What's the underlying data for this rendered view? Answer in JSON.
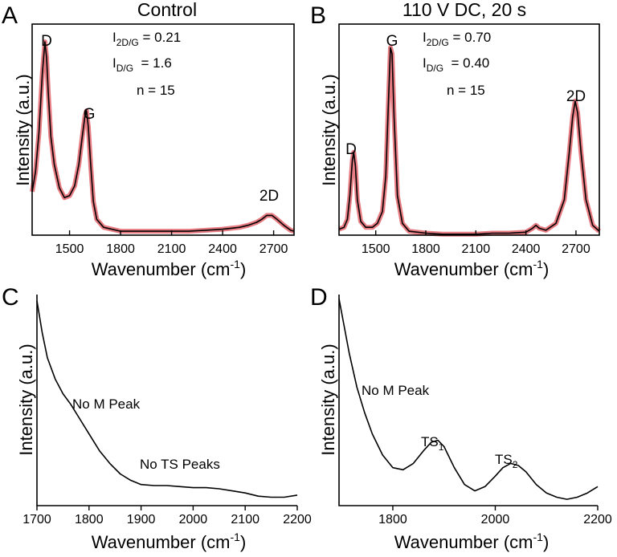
{
  "chart_data": [
    {
      "panel": "A",
      "title": "Control",
      "type": "line",
      "xlabel": "Wavenumber (cm",
      "xlabel_sup": "-1",
      "xlabel_end": ")",
      "ylabel": "Intensity (a.u.)",
      "xlim": [
        1280,
        2820
      ],
      "ylim": [
        0,
        1.07
      ],
      "x_ticks": [
        "1500",
        "1800",
        "2100",
        "2400",
        "2700"
      ],
      "curve_color": "#000000",
      "band_color": "#e0505a",
      "series": [
        {
          "x": [
            1280,
            1300,
            1320,
            1340,
            1355,
            1365,
            1375,
            1390,
            1410,
            1440,
            1470,
            1500,
            1530,
            1555,
            1575,
            1590,
            1600,
            1610,
            1625,
            1640,
            1660,
            1700,
            1800,
            1900,
            2000,
            2100,
            2200,
            2300,
            2400,
            2450,
            2500,
            2550,
            2600,
            2630,
            2660,
            2690,
            2720,
            2760,
            2800,
            2820
          ],
          "y": [
            0.22,
            0.32,
            0.52,
            0.82,
            0.98,
            0.9,
            0.72,
            0.5,
            0.36,
            0.24,
            0.19,
            0.2,
            0.25,
            0.36,
            0.5,
            0.6,
            0.63,
            0.55,
            0.35,
            0.17,
            0.08,
            0.04,
            0.02,
            0.02,
            0.02,
            0.02,
            0.02,
            0.025,
            0.03,
            0.035,
            0.04,
            0.05,
            0.065,
            0.08,
            0.1,
            0.1,
            0.08,
            0.05,
            0.025,
            0.02
          ]
        }
      ],
      "annotations": [
        {
          "label": "I",
          "sub": "2D/G",
          "text": " = 0.21"
        },
        {
          "label": "I",
          "sub": "D/G",
          "text": "  = 1.6"
        },
        {
          "label": "",
          "sub": "",
          "text": "n = 15"
        }
      ],
      "peak_labels": [
        "D",
        "G",
        "2D"
      ]
    },
    {
      "panel": "B",
      "title": "110 V DC, 20 s",
      "type": "line",
      "xlabel": "Wavenumber (cm",
      "xlabel_sup": "-1",
      "xlabel_end": ")",
      "ylabel": "Intensity (a.u.)",
      "xlim": [
        1280,
        2840
      ],
      "ylim": [
        0,
        1.07
      ],
      "x_ticks": [
        "1500",
        "1800",
        "2100",
        "2400",
        "2700"
      ],
      "curve_color": "#000000",
      "band_color": "#e0505a",
      "series": [
        {
          "x": [
            1280,
            1310,
            1330,
            1345,
            1360,
            1368,
            1378,
            1390,
            1410,
            1440,
            1480,
            1510,
            1540,
            1560,
            1575,
            1588,
            1598,
            1610,
            1630,
            1660,
            1700,
            1800,
            1900,
            2000,
            2100,
            2200,
            2300,
            2400,
            2440,
            2460,
            2480,
            2520,
            2580,
            2630,
            2660,
            2680,
            2695,
            2710,
            2730,
            2760,
            2800,
            2840
          ],
          "y": [
            0.03,
            0.04,
            0.08,
            0.2,
            0.38,
            0.42,
            0.35,
            0.18,
            0.07,
            0.04,
            0.04,
            0.06,
            0.12,
            0.3,
            0.65,
            0.95,
            0.92,
            0.6,
            0.2,
            0.06,
            0.02,
            0.01,
            0.005,
            0.005,
            0.005,
            0.01,
            0.01,
            0.015,
            0.035,
            0.05,
            0.035,
            0.025,
            0.06,
            0.18,
            0.42,
            0.6,
            0.68,
            0.62,
            0.42,
            0.18,
            0.05,
            0.02
          ]
        }
      ],
      "annotations": [
        {
          "label": "I",
          "sub": "2D/G",
          "text": " = 0.70"
        },
        {
          "label": "I",
          "sub": "D/G",
          "text": "  = 0.40"
        },
        {
          "label": "",
          "sub": "",
          "text": "n = 15"
        }
      ],
      "peak_labels": [
        "D",
        "G",
        "2D"
      ]
    },
    {
      "panel": "C",
      "type": "line",
      "xlabel": "Wavenumber (cm",
      "xlabel_sup": "-1",
      "xlabel_end": ")",
      "ylabel": "Intensity (a.u.)",
      "xlim": [
        1700,
        2200
      ],
      "ylim": [
        0,
        1.0
      ],
      "x_ticks": [
        "1700",
        "1800",
        "1900",
        "2000",
        "2100",
        "2200"
      ],
      "curve_color": "#000000",
      "series": [
        {
          "x": [
            1700,
            1710,
            1720,
            1735,
            1750,
            1765,
            1780,
            1800,
            1820,
            1840,
            1860,
            1880,
            1900,
            1925,
            1950,
            1975,
            2000,
            2025,
            2050,
            2075,
            2100,
            2125,
            2150,
            2175,
            2200
          ],
          "y": [
            0.97,
            0.82,
            0.7,
            0.6,
            0.53,
            0.48,
            0.42,
            0.34,
            0.26,
            0.2,
            0.15,
            0.12,
            0.1,
            0.095,
            0.095,
            0.09,
            0.085,
            0.085,
            0.08,
            0.07,
            0.06,
            0.045,
            0.04,
            0.04,
            0.05
          ]
        }
      ],
      "annotations": [
        {
          "text": "No M Peak"
        },
        {
          "text": "No TS Peaks"
        }
      ]
    },
    {
      "panel": "D",
      "type": "line",
      "xlabel": "Wavenumber (cm",
      "xlabel_sup": "-1",
      "xlabel_end": ")",
      "ylabel": "Intensity (a.u.)",
      "xlim": [
        1695,
        2200
      ],
      "ylim": [
        0,
        1.0
      ],
      "x_ticks": [
        "1800",
        "2000",
        "2200"
      ],
      "curve_color": "#000000",
      "series": [
        {
          "x": [
            1695,
            1705,
            1715,
            1730,
            1745,
            1760,
            1780,
            1800,
            1820,
            1840,
            1860,
            1875,
            1888,
            1900,
            1920,
            1940,
            1960,
            1980,
            2000,
            2015,
            2030,
            2045,
            2060,
            2080,
            2100,
            2120,
            2140,
            2160,
            2180,
            2200
          ],
          "y": [
            0.98,
            0.85,
            0.72,
            0.56,
            0.44,
            0.34,
            0.24,
            0.18,
            0.17,
            0.2,
            0.26,
            0.3,
            0.31,
            0.28,
            0.18,
            0.1,
            0.07,
            0.09,
            0.14,
            0.18,
            0.2,
            0.19,
            0.16,
            0.1,
            0.06,
            0.04,
            0.03,
            0.04,
            0.06,
            0.09
          ]
        }
      ],
      "annotations": [
        {
          "text": "No M Peak"
        },
        {
          "label": "TS",
          "sub": "1",
          "text": ""
        },
        {
          "label": "TS",
          "sub": "2",
          "text": ""
        }
      ]
    }
  ]
}
